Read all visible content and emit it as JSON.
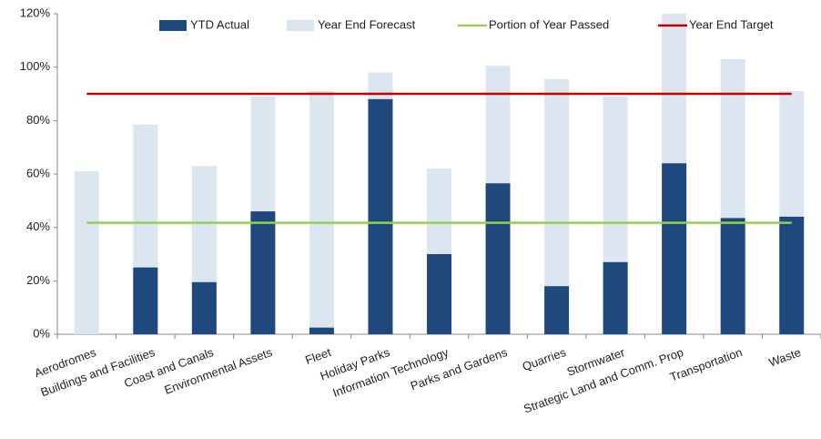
{
  "chart_data": {
    "type": "bar",
    "categories": [
      "Aerodromes",
      "Buildings and Facilities",
      "Coast and Canals",
      "Environmental Assets",
      "Fleet",
      "Holiday Parks",
      "Information Technology",
      "Parks and Gardens",
      "Quarries",
      "Stormwater",
      "Strategic Land and Comm. Prop",
      "Transportation",
      "Waste"
    ],
    "series": [
      {
        "name": "YTD Actual",
        "type": "bar",
        "color": "#1f497d",
        "values": [
          0,
          25,
          19.5,
          46,
          2.5,
          88,
          30,
          56.5,
          18,
          27,
          64,
          43.5,
          44
        ]
      },
      {
        "name": "Year End Forecast",
        "type": "bar",
        "color": "#dce6f0",
        "values": [
          61,
          78.5,
          63,
          89,
          91,
          98,
          62,
          100.5,
          95.5,
          89,
          120,
          103,
          91
        ]
      },
      {
        "name": "Portion of Year Passed",
        "type": "line",
        "color": "#92d050",
        "values": [
          41.7,
          41.7,
          41.7,
          41.7,
          41.7,
          41.7,
          41.7,
          41.7,
          41.7,
          41.7,
          41.7,
          41.7,
          41.7
        ]
      },
      {
        "name": "Year End Target",
        "type": "line",
        "color": "#c00000",
        "values": [
          90,
          90,
          90,
          90,
          90,
          90,
          90,
          90,
          90,
          90,
          90,
          90,
          90
        ]
      }
    ],
    "ylim": [
      0,
      120
    ],
    "yticks": [
      {
        "value": 0,
        "label": "0%"
      },
      {
        "value": 20,
        "label": "20%"
      },
      {
        "value": 40,
        "label": "40%"
      },
      {
        "value": 60,
        "label": "60%"
      },
      {
        "value": 80,
        "label": "80%"
      },
      {
        "value": 100,
        "label": "100%"
      },
      {
        "value": 120,
        "label": "120%"
      }
    ],
    "grid": false,
    "legend": "top"
  }
}
